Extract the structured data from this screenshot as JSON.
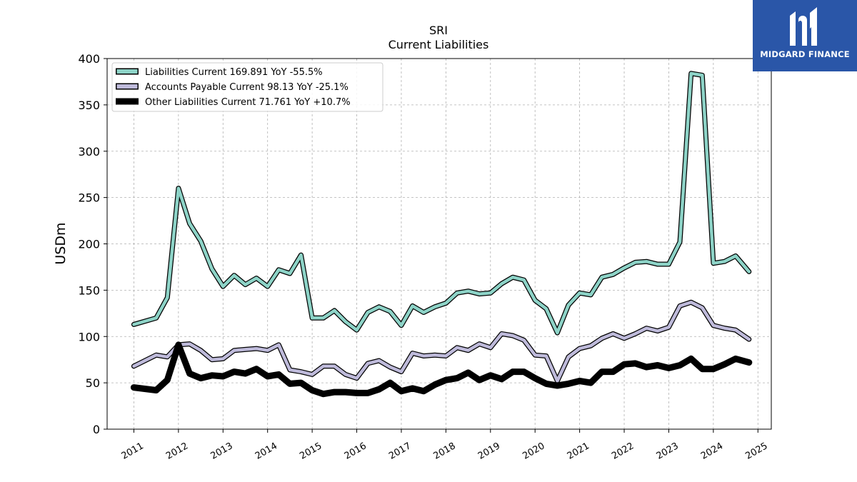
{
  "chart_data": {
    "type": "line",
    "title": "SRI",
    "subtitle": "Current  Liabilities",
    "xlabel": "",
    "ylabel": "USDm",
    "xlim": [
      2010.4,
      2025.3
    ],
    "ylim": [
      0,
      400
    ],
    "yticks": [
      "0",
      "50",
      "100",
      "150",
      "200",
      "250",
      "300",
      "350",
      "400"
    ],
    "xticks": [
      "2011",
      "2012",
      "2013",
      "2014",
      "2015",
      "2016",
      "2017",
      "2018",
      "2019",
      "2020",
      "2021",
      "2022",
      "2023",
      "2024",
      "2025"
    ],
    "grid": true,
    "legend_position": "top-left",
    "x": [
      2011.0,
      2011.5,
      2011.75,
      2012.0,
      2012.25,
      2012.5,
      2012.75,
      2013.0,
      2013.25,
      2013.5,
      2013.75,
      2014.0,
      2014.25,
      2014.5,
      2014.75,
      2015.0,
      2015.25,
      2015.5,
      2015.75,
      2016.0,
      2016.25,
      2016.5,
      2016.75,
      2017.0,
      2017.25,
      2017.5,
      2017.75,
      2018.0,
      2018.25,
      2018.5,
      2018.75,
      2019.0,
      2019.25,
      2019.5,
      2019.75,
      2020.0,
      2020.25,
      2020.5,
      2020.75,
      2021.0,
      2021.25,
      2021.5,
      2021.75,
      2022.0,
      2022.25,
      2022.5,
      2022.75,
      2023.0,
      2023.25,
      2023.5,
      2023.75,
      2024.0,
      2024.25,
      2024.5,
      2024.8
    ],
    "series": [
      {
        "name": "Liabilities Current  169.891 YoY -55.5%",
        "color": "#8dd3c7",
        "values": [
          113,
          120,
          142,
          260,
          222,
          203,
          173,
          154,
          166,
          156,
          163,
          154,
          172,
          168,
          188,
          120,
          120,
          128,
          116,
          107,
          126,
          132,
          127,
          112,
          133,
          126,
          132,
          136,
          147,
          149,
          146,
          147,
          157,
          164,
          161,
          139,
          130,
          104,
          134,
          147,
          145,
          164,
          167,
          174,
          180,
          181,
          178,
          178,
          202,
          384,
          382,
          179,
          181,
          187,
          170
        ]
      },
      {
        "name": "Accounts Payable Current  98.13 YoY -25.1%",
        "color": "#bebada",
        "values": [
          68,
          80,
          78,
          91,
          92,
          85,
          75,
          76,
          85,
          86,
          87,
          85,
          91,
          64,
          62,
          59,
          68,
          68,
          59,
          55,
          71,
          74,
          67,
          62,
          82,
          79,
          80,
          79,
          88,
          85,
          92,
          88,
          103,
          101,
          96,
          80,
          79,
          52,
          78,
          87,
          90,
          98,
          103,
          98,
          103,
          109,
          106,
          110,
          133,
          137,
          131,
          112,
          109,
          107,
          97
        ]
      },
      {
        "name": "Other Liabilities Current  71.761 YoY +10.7%",
        "color": "#000000",
        "values": [
          45,
          42,
          53,
          91,
          60,
          55,
          58,
          57,
          62,
          60,
          65,
          57,
          59,
          49,
          50,
          42,
          38,
          40,
          40,
          39,
          39,
          43,
          50,
          41,
          44,
          41,
          48,
          53,
          55,
          61,
          53,
          58,
          54,
          62,
          62,
          55,
          49,
          47,
          49,
          52,
          50,
          62,
          62,
          70,
          71,
          67,
          69,
          66,
          69,
          76,
          65,
          65,
          70,
          76,
          72
        ]
      }
    ]
  },
  "logo": {
    "text": "MIDGARD FINANCE",
    "icon": "midgard-logo-icon",
    "background": "#2a56a8"
  }
}
